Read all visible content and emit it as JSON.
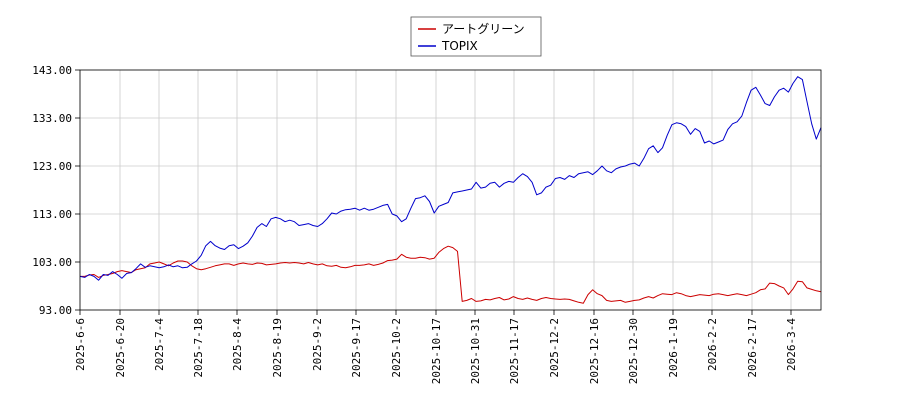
{
  "chart_data": {
    "type": "line",
    "title": "",
    "xlabel": "",
    "ylabel": "",
    "ylim": [
      93.0,
      143.0
    ],
    "yticks": [
      "93.00",
      "103.00",
      "113.00",
      "123.00",
      "133.00",
      "143.00"
    ],
    "xticks": [
      "2025-6-6",
      "2025-6-20",
      "2025-7-4",
      "2025-7-18",
      "2025-8-4",
      "2025-8-19",
      "2025-9-2",
      "2025-9-17",
      "2025-10-2",
      "2025-10-17",
      "2025-10-31",
      "2025-11-17",
      "2025-12-2",
      "2025-12-16",
      "2025-12-30",
      "2026-1-19",
      "2026-2-2",
      "2026-2-17",
      "2026-3-4"
    ],
    "grid": true,
    "legend_position": "top-center",
    "series": [
      {
        "name": "アートグリーン",
        "color": "#cc0000",
        "values": [
          [
            0,
            100.0
          ],
          [
            1,
            100.0
          ],
          [
            2,
            100.3
          ],
          [
            3,
            100.4
          ],
          [
            4,
            99.8
          ],
          [
            5,
            100.2
          ],
          [
            6,
            100.4
          ],
          [
            7,
            100.6
          ],
          [
            8,
            101.0
          ],
          [
            9,
            101.2
          ],
          [
            10,
            101.0
          ],
          [
            11,
            100.8
          ],
          [
            12,
            101.4
          ],
          [
            13,
            101.6
          ],
          [
            14,
            101.8
          ],
          [
            15,
            102.6
          ],
          [
            16,
            102.8
          ],
          [
            17,
            103.0
          ],
          [
            18,
            102.6
          ],
          [
            19,
            102.2
          ],
          [
            20,
            102.8
          ],
          [
            21,
            103.2
          ],
          [
            22,
            103.2
          ],
          [
            23,
            103.0
          ],
          [
            24,
            102.2
          ],
          [
            25,
            101.6
          ],
          [
            26,
            101.4
          ],
          [
            27,
            101.6
          ],
          [
            28,
            101.9
          ],
          [
            29,
            102.2
          ],
          [
            30,
            102.4
          ],
          [
            31,
            102.6
          ],
          [
            32,
            102.6
          ],
          [
            33,
            102.3
          ],
          [
            34,
            102.6
          ],
          [
            35,
            102.8
          ],
          [
            36,
            102.6
          ],
          [
            37,
            102.5
          ],
          [
            38,
            102.8
          ],
          [
            39,
            102.7
          ],
          [
            40,
            102.4
          ],
          [
            41,
            102.5
          ],
          [
            42,
            102.6
          ],
          [
            43,
            102.8
          ],
          [
            44,
            102.9
          ],
          [
            45,
            102.8
          ],
          [
            46,
            102.9
          ],
          [
            47,
            102.8
          ],
          [
            48,
            102.6
          ],
          [
            49,
            102.9
          ],
          [
            50,
            102.6
          ],
          [
            51,
            102.4
          ],
          [
            52,
            102.6
          ],
          [
            53,
            102.2
          ],
          [
            54,
            102.1
          ],
          [
            55,
            102.3
          ],
          [
            56,
            101.9
          ],
          [
            57,
            101.8
          ],
          [
            58,
            102.0
          ],
          [
            59,
            102.3
          ],
          [
            60,
            102.3
          ],
          [
            61,
            102.4
          ],
          [
            62,
            102.6
          ],
          [
            63,
            102.3
          ],
          [
            64,
            102.5
          ],
          [
            65,
            102.8
          ],
          [
            66,
            103.3
          ],
          [
            67,
            103.4
          ],
          [
            68,
            103.6
          ],
          [
            69,
            104.6
          ],
          [
            70,
            104.0
          ],
          [
            71,
            103.8
          ],
          [
            72,
            103.8
          ],
          [
            73,
            104.0
          ],
          [
            74,
            103.9
          ],
          [
            75,
            103.6
          ],
          [
            76,
            103.8
          ],
          [
            77,
            105.0
          ],
          [
            78,
            105.8
          ],
          [
            79,
            106.3
          ],
          [
            80,
            106.0
          ],
          [
            81,
            105.2
          ],
          [
            82,
            94.8
          ],
          [
            83,
            95.0
          ],
          [
            84,
            95.4
          ],
          [
            85,
            94.8
          ],
          [
            86,
            94.9
          ],
          [
            87,
            95.2
          ],
          [
            88,
            95.1
          ],
          [
            89,
            95.4
          ],
          [
            90,
            95.6
          ],
          [
            91,
            95.1
          ],
          [
            92,
            95.3
          ],
          [
            93,
            95.8
          ],
          [
            94,
            95.4
          ],
          [
            95,
            95.2
          ],
          [
            96,
            95.5
          ],
          [
            97,
            95.2
          ],
          [
            98,
            95.0
          ],
          [
            99,
            95.4
          ],
          [
            100,
            95.6
          ],
          [
            101,
            95.4
          ],
          [
            102,
            95.3
          ],
          [
            103,
            95.2
          ],
          [
            104,
            95.3
          ],
          [
            105,
            95.2
          ],
          [
            106,
            94.9
          ],
          [
            107,
            94.6
          ],
          [
            108,
            94.4
          ],
          [
            109,
            96.2
          ],
          [
            110,
            97.2
          ],
          [
            111,
            96.4
          ],
          [
            112,
            96.0
          ],
          [
            113,
            95.0
          ],
          [
            114,
            94.8
          ],
          [
            115,
            94.9
          ],
          [
            116,
            95.0
          ],
          [
            117,
            94.6
          ],
          [
            118,
            94.8
          ],
          [
            119,
            95.0
          ],
          [
            120,
            95.1
          ],
          [
            121,
            95.5
          ],
          [
            122,
            95.8
          ],
          [
            123,
            95.5
          ],
          [
            124,
            96.0
          ],
          [
            125,
            96.4
          ],
          [
            126,
            96.3
          ],
          [
            127,
            96.2
          ],
          [
            128,
            96.6
          ],
          [
            129,
            96.4
          ],
          [
            130,
            96.0
          ],
          [
            131,
            95.8
          ],
          [
            132,
            96.0
          ],
          [
            133,
            96.2
          ],
          [
            134,
            96.1
          ],
          [
            135,
            96.0
          ],
          [
            136,
            96.3
          ],
          [
            137,
            96.4
          ],
          [
            138,
            96.2
          ],
          [
            139,
            96.0
          ],
          [
            140,
            96.2
          ],
          [
            141,
            96.4
          ],
          [
            142,
            96.2
          ],
          [
            143,
            96.0
          ],
          [
            144,
            96.3
          ],
          [
            145,
            96.6
          ],
          [
            146,
            97.2
          ],
          [
            147,
            97.4
          ],
          [
            148,
            98.6
          ],
          [
            149,
            98.5
          ],
          [
            150,
            98.0
          ],
          [
            151,
            97.6
          ],
          [
            152,
            96.2
          ],
          [
            153,
            97.4
          ],
          [
            154,
            99.0
          ],
          [
            155,
            98.9
          ],
          [
            156,
            97.6
          ],
          [
            157,
            97.3
          ],
          [
            158,
            97.0
          ],
          [
            159,
            96.8
          ]
        ]
      },
      {
        "name": "TOPIX",
        "color": "#0000cc",
        "values": [
          [
            0,
            100.0
          ],
          [
            1,
            99.8
          ],
          [
            2,
            100.4
          ],
          [
            3,
            100.0
          ],
          [
            4,
            99.2
          ],
          [
            5,
            100.4
          ],
          [
            6,
            100.2
          ],
          [
            7,
            101.0
          ],
          [
            8,
            100.4
          ],
          [
            9,
            99.6
          ],
          [
            10,
            100.6
          ],
          [
            11,
            100.8
          ],
          [
            12,
            101.6
          ],
          [
            13,
            102.6
          ],
          [
            14,
            101.9
          ],
          [
            15,
            102.2
          ],
          [
            16,
            102.0
          ],
          [
            17,
            101.8
          ],
          [
            18,
            102.0
          ],
          [
            19,
            102.4
          ],
          [
            20,
            102.0
          ],
          [
            21,
            102.2
          ],
          [
            22,
            101.8
          ],
          [
            23,
            101.9
          ],
          [
            24,
            102.6
          ],
          [
            25,
            103.2
          ],
          [
            26,
            104.4
          ],
          [
            27,
            106.4
          ],
          [
            28,
            107.3
          ],
          [
            29,
            106.4
          ],
          [
            30,
            105.9
          ],
          [
            31,
            105.6
          ],
          [
            32,
            106.4
          ],
          [
            33,
            106.6
          ],
          [
            34,
            105.8
          ],
          [
            35,
            106.3
          ],
          [
            36,
            107.0
          ],
          [
            37,
            108.4
          ],
          [
            38,
            110.2
          ],
          [
            39,
            111.0
          ],
          [
            40,
            110.4
          ],
          [
            41,
            112.0
          ],
          [
            42,
            112.3
          ],
          [
            43,
            112.0
          ],
          [
            44,
            111.4
          ],
          [
            45,
            111.7
          ],
          [
            46,
            111.4
          ],
          [
            47,
            110.6
          ],
          [
            48,
            110.8
          ],
          [
            49,
            111.0
          ],
          [
            50,
            110.6
          ],
          [
            51,
            110.4
          ],
          [
            52,
            111.0
          ],
          [
            53,
            112.0
          ],
          [
            54,
            113.2
          ],
          [
            55,
            113.0
          ],
          [
            56,
            113.6
          ],
          [
            57,
            113.9
          ],
          [
            58,
            114.0
          ],
          [
            59,
            114.2
          ],
          [
            60,
            113.8
          ],
          [
            61,
            114.2
          ],
          [
            62,
            113.8
          ],
          [
            63,
            114.0
          ],
          [
            64,
            114.4
          ],
          [
            65,
            114.8
          ],
          [
            66,
            115.0
          ],
          [
            67,
            113.0
          ],
          [
            68,
            112.6
          ],
          [
            69,
            111.4
          ],
          [
            70,
            112.0
          ],
          [
            71,
            114.2
          ],
          [
            72,
            116.2
          ],
          [
            73,
            116.4
          ],
          [
            74,
            116.8
          ],
          [
            75,
            115.6
          ],
          [
            76,
            113.2
          ],
          [
            77,
            114.6
          ],
          [
            78,
            115.0
          ],
          [
            79,
            115.4
          ],
          [
            80,
            117.4
          ],
          [
            81,
            117.6
          ],
          [
            82,
            117.8
          ],
          [
            83,
            118.0
          ],
          [
            84,
            118.2
          ],
          [
            85,
            119.6
          ],
          [
            86,
            118.4
          ],
          [
            87,
            118.6
          ],
          [
            88,
            119.4
          ],
          [
            89,
            119.6
          ],
          [
            90,
            118.6
          ],
          [
            91,
            119.4
          ],
          [
            92,
            119.8
          ],
          [
            93,
            119.6
          ],
          [
            94,
            120.6
          ],
          [
            95,
            121.4
          ],
          [
            96,
            120.8
          ],
          [
            97,
            119.6
          ],
          [
            98,
            117.0
          ],
          [
            99,
            117.4
          ],
          [
            100,
            118.6
          ],
          [
            101,
            119.0
          ],
          [
            102,
            120.4
          ],
          [
            103,
            120.6
          ],
          [
            104,
            120.2
          ],
          [
            105,
            121.0
          ],
          [
            106,
            120.6
          ],
          [
            107,
            121.4
          ],
          [
            108,
            121.6
          ],
          [
            109,
            121.8
          ],
          [
            110,
            121.2
          ],
          [
            111,
            122.0
          ],
          [
            112,
            123.0
          ],
          [
            113,
            122.0
          ],
          [
            114,
            121.6
          ],
          [
            115,
            122.4
          ],
          [
            116,
            122.8
          ],
          [
            117,
            123.0
          ],
          [
            118,
            123.4
          ],
          [
            119,
            123.6
          ],
          [
            120,
            123.0
          ],
          [
            121,
            124.6
          ],
          [
            122,
            126.6
          ],
          [
            123,
            127.2
          ],
          [
            124,
            125.8
          ],
          [
            125,
            126.8
          ],
          [
            126,
            129.4
          ],
          [
            127,
            131.6
          ],
          [
            128,
            132.0
          ],
          [
            129,
            131.8
          ],
          [
            130,
            131.2
          ],
          [
            131,
            129.6
          ],
          [
            132,
            130.8
          ],
          [
            133,
            130.2
          ],
          [
            134,
            127.8
          ],
          [
            135,
            128.2
          ],
          [
            136,
            127.6
          ],
          [
            137,
            128.0
          ],
          [
            138,
            128.4
          ],
          [
            139,
            130.6
          ],
          [
            140,
            131.8
          ],
          [
            141,
            132.2
          ],
          [
            142,
            133.4
          ],
          [
            143,
            136.2
          ],
          [
            144,
            138.8
          ],
          [
            145,
            139.4
          ],
          [
            146,
            137.8
          ],
          [
            147,
            136.0
          ],
          [
            148,
            135.6
          ],
          [
            149,
            137.4
          ],
          [
            150,
            138.8
          ],
          [
            151,
            139.2
          ],
          [
            152,
            138.4
          ],
          [
            153,
            140.2
          ],
          [
            154,
            141.6
          ],
          [
            155,
            141.0
          ],
          [
            156,
            136.4
          ],
          [
            157,
            131.8
          ],
          [
            158,
            128.6
          ],
          [
            159,
            131.0
          ]
        ]
      }
    ]
  }
}
